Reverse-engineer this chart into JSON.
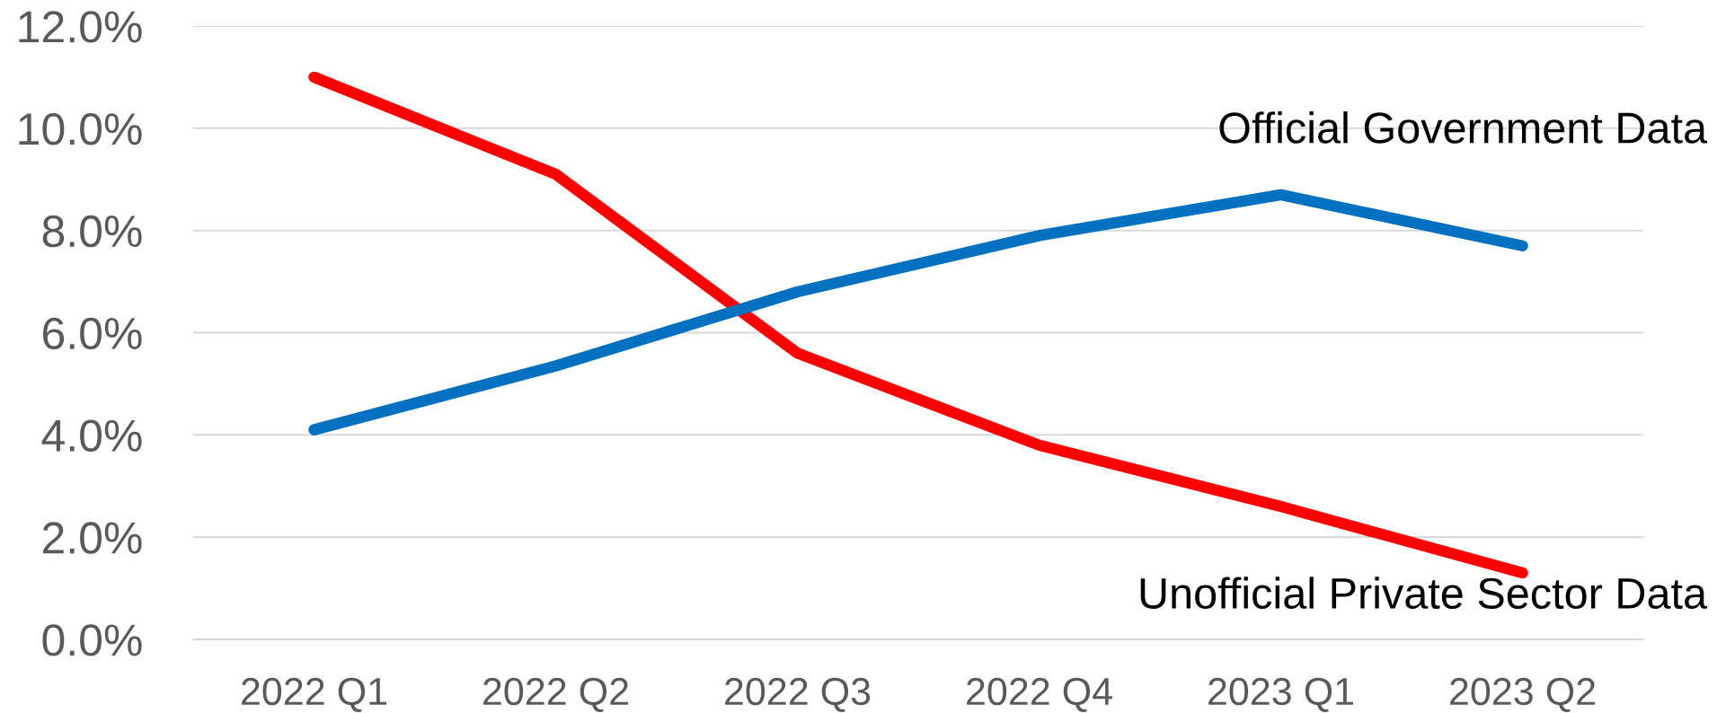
{
  "chart_data": {
    "type": "line",
    "categories": [
      "2022 Q1",
      "2022 Q2",
      "2022 Q3",
      "2022 Q4",
      "2023 Q1",
      "2023 Q2"
    ],
    "series": [
      {
        "name": "Official Government Data",
        "color": "#0070c0",
        "values": [
          4.1,
          5.35,
          6.8,
          7.9,
          8.7,
          7.7
        ]
      },
      {
        "name": "Unofficial Private Sector Data",
        "color": "#ff0000",
        "values": [
          11.0,
          9.1,
          5.6,
          3.8,
          2.6,
          1.3
        ]
      }
    ],
    "ylim": [
      0,
      12
    ],
    "yticks": [
      {
        "value": 0,
        "label": "0.0%"
      },
      {
        "value": 2,
        "label": "2.0%"
      },
      {
        "value": 4,
        "label": "4.0%"
      },
      {
        "value": 6,
        "label": "6.0%"
      },
      {
        "value": 8,
        "label": "8.0%"
      },
      {
        "value": 10,
        "label": "10.0%"
      },
      {
        "value": 12,
        "label": "12.0%"
      }
    ],
    "grid": "y",
    "legend": false,
    "marker": "none",
    "line_style": "solid"
  }
}
